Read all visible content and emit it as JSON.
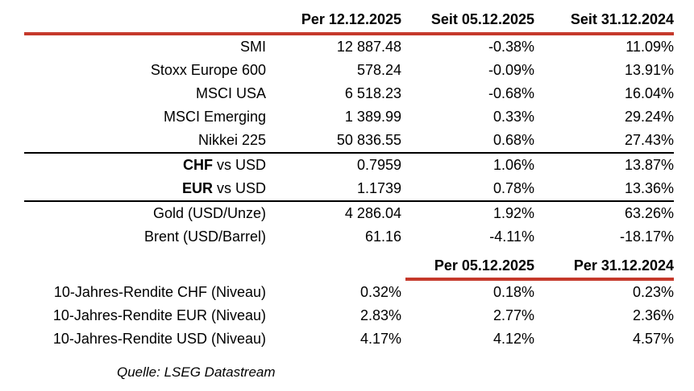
{
  "colors": {
    "accent_red": "#C5392B",
    "divider_black": "#000000",
    "text": "#000000",
    "background": "#FFFFFF"
  },
  "table": {
    "header_row": {
      "col1": "",
      "col2": "Per 12.12.2025",
      "col3": "Seit 05.12.2025",
      "col4": "Seit 31.12.2024"
    },
    "indices": [
      {
        "label": "SMI",
        "values": [
          "12 887.48",
          "-0.38%",
          "11.09%"
        ]
      },
      {
        "label": "Stoxx Europe 600",
        "values": [
          "578.24",
          "-0.09%",
          "13.91%"
        ]
      },
      {
        "label": "MSCI USA",
        "values": [
          "6 518.23",
          "-0.68%",
          "16.04%"
        ]
      },
      {
        "label": "MSCI Emerging",
        "values": [
          "1 389.99",
          "0.33%",
          "29.24%"
        ]
      },
      {
        "label": "Nikkei 225",
        "values": [
          "50 836.55",
          "0.68%",
          "27.43%"
        ]
      }
    ],
    "currencies": [
      {
        "label_bold": "CHF",
        "label": " vs USD",
        "values": [
          "0.7959",
          "1.06%",
          "13.87%"
        ]
      },
      {
        "label_bold": "EUR",
        "label": " vs USD",
        "values": [
          "1.1739",
          "0.78%",
          "13.36%"
        ]
      }
    ],
    "commodities": [
      {
        "label": "Gold (USD/Unze)",
        "values": [
          "4 286.04",
          "1.92%",
          "63.26%"
        ]
      },
      {
        "label": "Brent (USD/Barrel)",
        "values": [
          "61.16",
          "-4.11%",
          "-18.17%"
        ]
      }
    ],
    "second_header_row": {
      "col3": "Per 05.12.2025",
      "col4": "Per 31.12.2024"
    },
    "yields": [
      {
        "label": "10-Jahres-Rendite CHF (Niveau)",
        "values": [
          "0.32%",
          "0.18%",
          "0.23%"
        ]
      },
      {
        "label": "10-Jahres-Rendite EUR (Niveau)",
        "values": [
          "2.83%",
          "2.77%",
          "2.36%"
        ]
      },
      {
        "label": "10-Jahres-Rendite USD (Niveau)",
        "values": [
          "4.17%",
          "4.12%",
          "4.57%"
        ]
      }
    ]
  },
  "source": "Quelle: LSEG Datastream"
}
